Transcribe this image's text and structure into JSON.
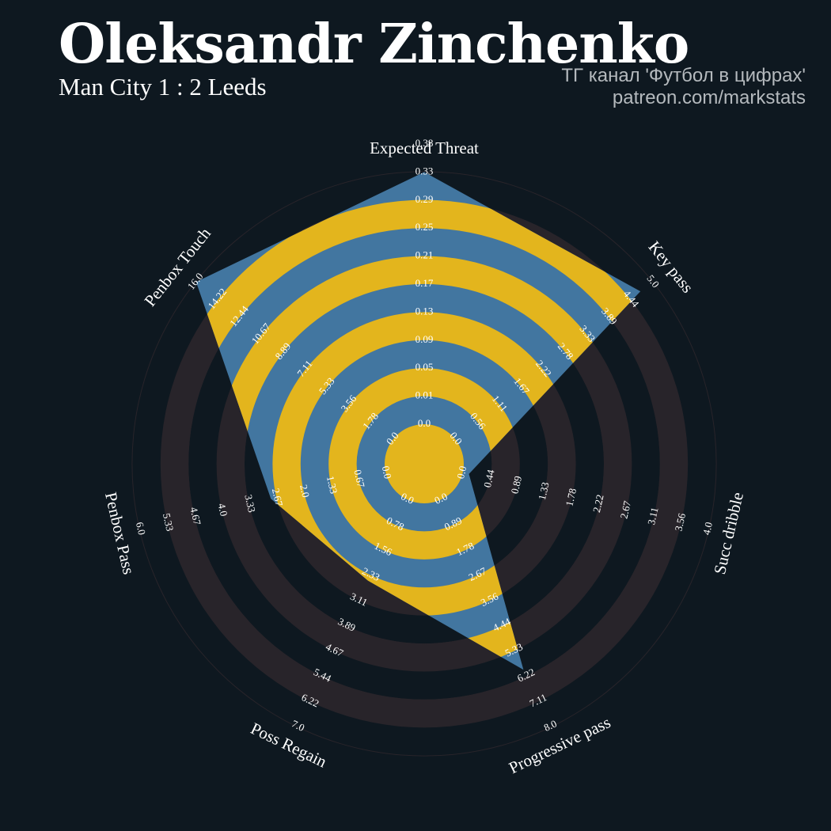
{
  "header": {
    "title": "Oleksandr Zinchenko",
    "subtitle": "Man City 1 : 2 Leeds",
    "credit_line1": "ТГ канал 'Футбол в цифрах'",
    "credit_line2": "patreon.com/markstats"
  },
  "chart_data": {
    "type": "radar",
    "params": [
      "Expected Threat",
      "Key pass",
      "Succ dribble",
      "Progressive pass",
      "Poss Regain",
      "Penbox Pass",
      "Penbox Touch"
    ],
    "ranges": [
      [
        0.0,
        0.38
      ],
      [
        0.0,
        5.0
      ],
      [
        0.0,
        4.0
      ],
      [
        0.0,
        8.0
      ],
      [
        0.0,
        7.0
      ],
      [
        0.0,
        6.0
      ],
      [
        0.0,
        16.0
      ]
    ],
    "values": [
      0.38,
      4.7,
      0.1,
      6.0,
      2.5,
      2.8,
      16.0
    ],
    "tick_labels": [
      [
        "0.0",
        "0.01",
        "0.05",
        "0.09",
        "0.13",
        "0.17",
        "0.21",
        "0.25",
        "0.29",
        "0.33",
        "0.38"
      ],
      [
        "0.0",
        "0.56",
        "1.11",
        "1.67",
        "2.22",
        "2.78",
        "3.33",
        "3.89",
        "4.44",
        "5.0"
      ],
      [
        "0.0",
        "0.44",
        "0.89",
        "1.33",
        "1.78",
        "2.22",
        "2.67",
        "3.11",
        "3.56",
        "4.0"
      ],
      [
        "0.0",
        "0.89",
        "1.78",
        "2.67",
        "3.56",
        "4.44",
        "5.33",
        "6.22",
        "7.11",
        "8.0"
      ],
      [
        "0.0",
        "0.78",
        "1.56",
        "2.33",
        "3.11",
        "3.89",
        "4.67",
        "5.44",
        "6.22",
        "7.0"
      ],
      [
        "0.0",
        "0.67",
        "1.33",
        "2.0",
        "2.67",
        "3.33",
        "4.0",
        "4.67",
        "5.33",
        "6.0"
      ],
      [
        "0.0",
        "1.78",
        "3.56",
        "5.33",
        "7.11",
        "8.89",
        "10.67",
        "12.44",
        "14.22",
        "16.0"
      ]
    ],
    "colors": {
      "background": "#0e1820",
      "ring_light": "#28242a",
      "ring_dark": "#0e1820",
      "polygon": "#4276a0",
      "polygon_ring": "#e3b51d",
      "text": "#ffffff"
    }
  }
}
